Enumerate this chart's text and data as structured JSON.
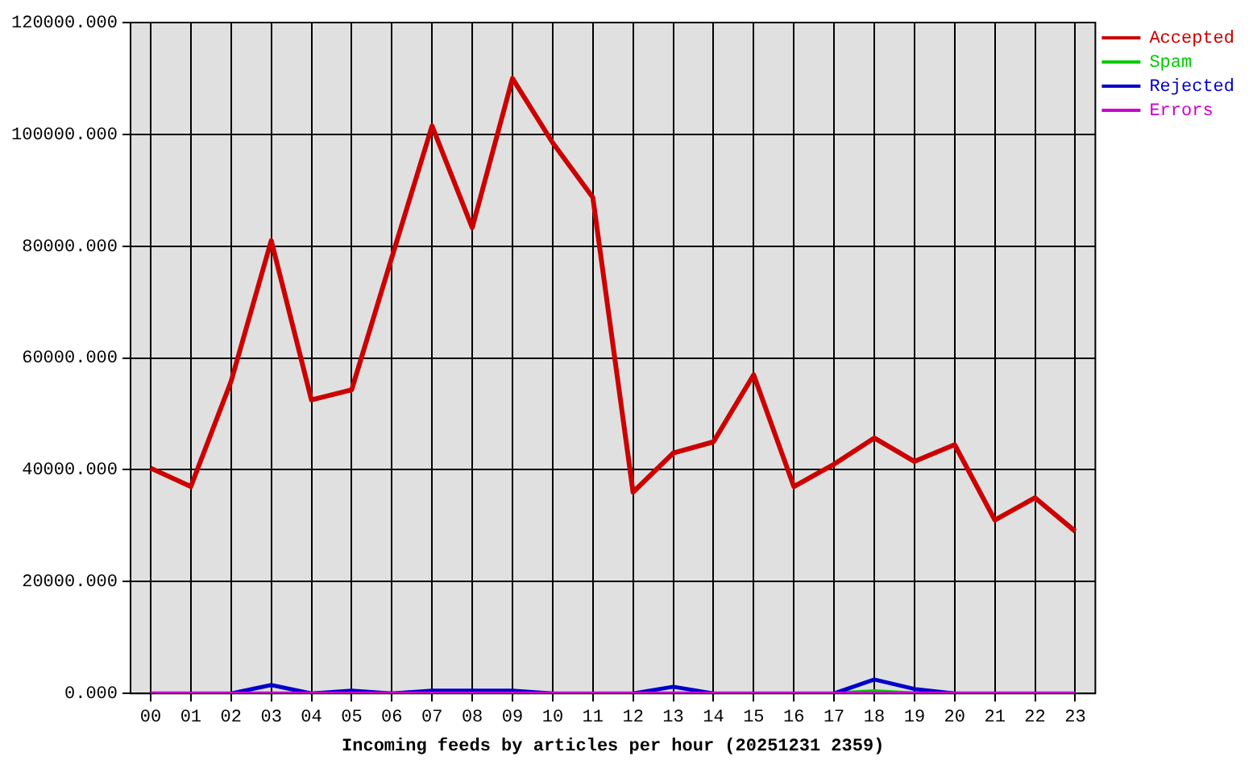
{
  "chart_data": {
    "type": "line",
    "xlabel": "Incoming feeds by articles per hour (20251231 2359)",
    "categories": [
      "00",
      "01",
      "02",
      "03",
      "04",
      "05",
      "06",
      "07",
      "08",
      "09",
      "10",
      "11",
      "12",
      "13",
      "14",
      "15",
      "16",
      "17",
      "18",
      "19",
      "20",
      "21",
      "22",
      "23"
    ],
    "series": [
      {
        "name": "Accepted",
        "color": "#cc0000",
        "values": [
          40300,
          37000,
          55800,
          81000,
          52500,
          54300,
          78000,
          101500,
          83300,
          110000,
          98500,
          88700,
          36000,
          43000,
          45000,
          57000,
          37000,
          41000,
          45700,
          41500,
          44500,
          31000,
          35000,
          29000
        ]
      },
      {
        "name": "Spam",
        "color": "#00cc00",
        "values": [
          null,
          null,
          null,
          null,
          null,
          null,
          null,
          null,
          null,
          null,
          null,
          null,
          null,
          null,
          null,
          null,
          null,
          0,
          400,
          0,
          null,
          null,
          null,
          null
        ]
      },
      {
        "name": "Rejected",
        "color": "#0000cc",
        "values": [
          null,
          null,
          0,
          1500,
          0,
          500,
          0,
          500,
          500,
          500,
          0,
          null,
          0,
          1200,
          0,
          null,
          null,
          0,
          2500,
          800,
          0,
          null,
          null,
          null
        ]
      },
      {
        "name": "Errors",
        "color": "#cc00cc",
        "values": [
          0,
          0,
          0,
          0,
          0,
          0,
          0,
          0,
          0,
          0,
          0,
          0,
          0,
          0,
          0,
          0,
          0,
          0,
          0,
          0,
          0,
          0,
          0,
          0
        ]
      }
    ],
    "ylim": [
      0,
      120000
    ],
    "yticks": [
      {
        "value": 0,
        "label": "0.000"
      },
      {
        "value": 20000,
        "label": "20000.000"
      },
      {
        "value": 40000,
        "label": "40000.000"
      },
      {
        "value": 60000,
        "label": "60000.000"
      },
      {
        "value": 80000,
        "label": "80000.000"
      },
      {
        "value": 100000,
        "label": "100000.000"
      },
      {
        "value": 120000,
        "label": "120000.000"
      }
    ],
    "grid": true,
    "legend": "top right",
    "marker": "none",
    "line_style": "solid"
  }
}
